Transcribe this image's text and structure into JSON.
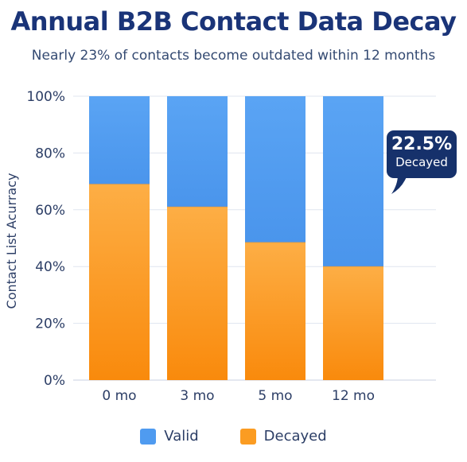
{
  "title": "Annual B2B Contact Data Decay",
  "subtitle": "Nearly 23% of contacts become outdated within 12 months",
  "colors": {
    "valid": "#4f9bf0",
    "decayed": "#fb9c22",
    "title": "#1a3478",
    "callout": "#16316b"
  },
  "callout": {
    "value": "22.5%",
    "label": "Decayed"
  },
  "chart_data": {
    "type": "bar",
    "stacked": true,
    "categories": [
      "0 mo",
      "3 mo",
      "5 mo",
      "12 mo"
    ],
    "series": [
      {
        "name": "Decayed",
        "values": [
          69,
          61,
          48.5,
          40
        ]
      },
      {
        "name": "Valid",
        "values": [
          31,
          39,
          51.5,
          60
        ]
      }
    ],
    "ylabel": "Contact List Acurracy",
    "yticks": [
      "0%",
      "20%",
      "40%",
      "60%",
      "80%",
      "100%"
    ],
    "ylim": [
      0,
      100
    ],
    "grid": true,
    "legend": "bottom"
  }
}
